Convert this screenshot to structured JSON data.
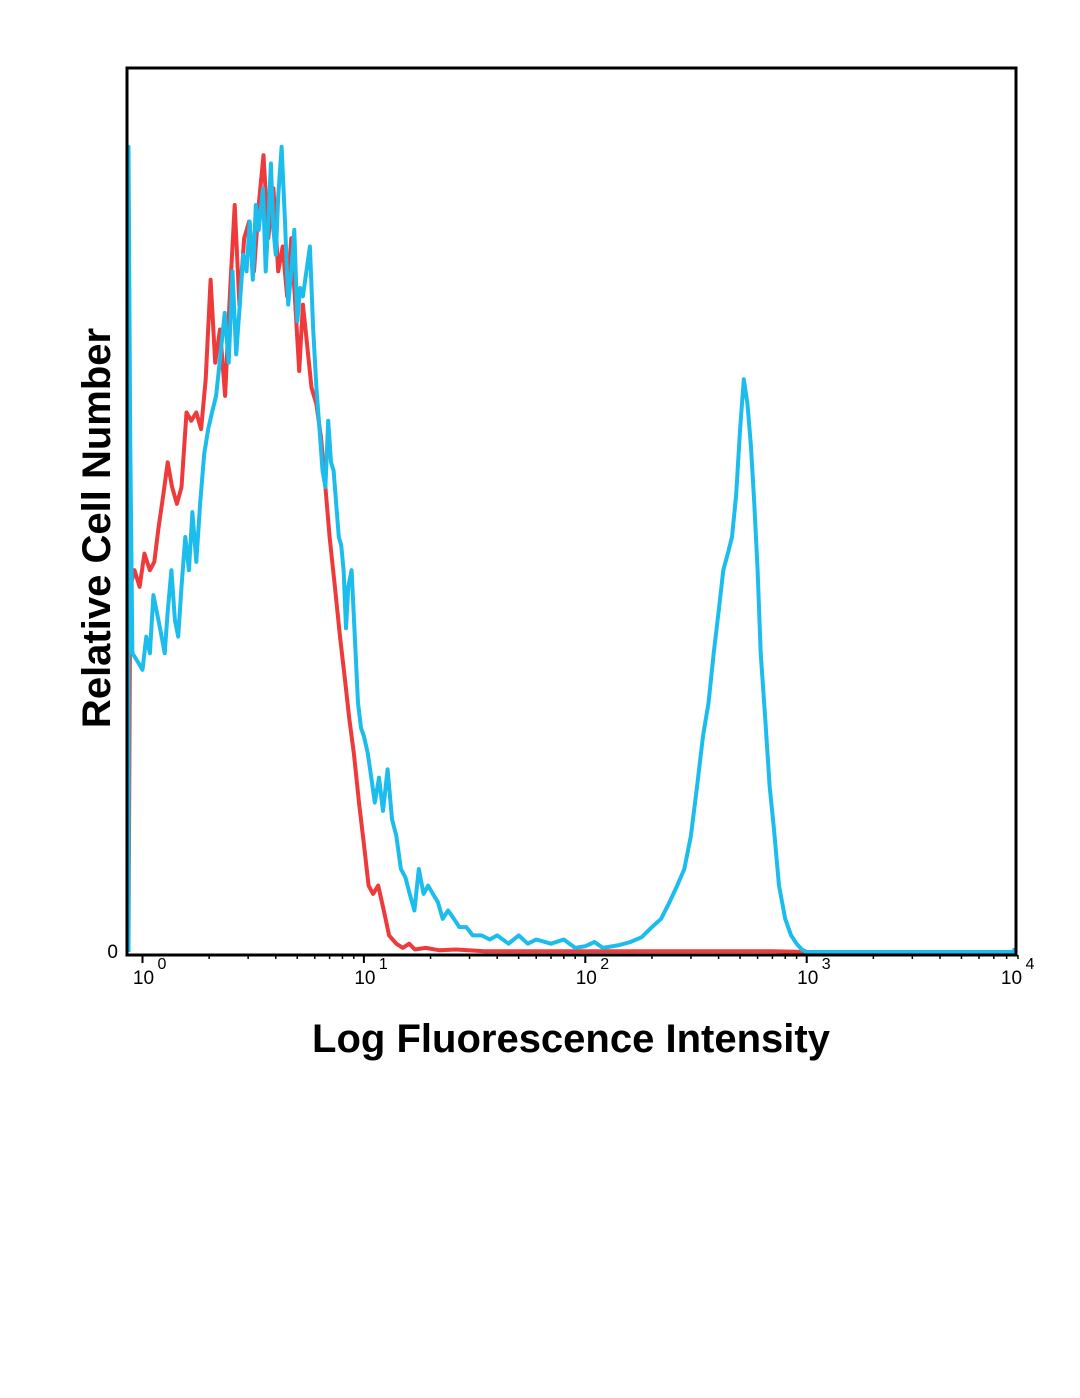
{
  "chart_data": {
    "type": "line",
    "title": "",
    "xlabel": "Log Fluorescence Intensity",
    "ylabel": "Relative Cell Number",
    "x_scale": "log",
    "xlim": [
      0.84,
      10000
    ],
    "ylim": [
      0,
      100
    ],
    "x_ticks": [
      {
        "base": "10",
        "exp": "0"
      },
      {
        "base": "10",
        "exp": "1"
      },
      {
        "base": "10",
        "exp": "2"
      },
      {
        "base": "10",
        "exp": "3"
      },
      {
        "base": "10",
        "exp": "4"
      }
    ],
    "y_zero_label": "0",
    "grid": false,
    "legend": "none",
    "series": [
      {
        "color": "#ee3a3a",
        "points": [
          [
            0.85,
            0
          ],
          [
            0.88,
            44
          ],
          [
            0.92,
            46
          ],
          [
            0.97,
            44
          ],
          [
            1.02,
            48
          ],
          [
            1.08,
            46
          ],
          [
            1.13,
            47
          ],
          [
            1.18,
            51
          ],
          [
            1.24,
            55
          ],
          [
            1.3,
            59
          ],
          [
            1.36,
            56
          ],
          [
            1.43,
            54
          ],
          [
            1.5,
            56
          ],
          [
            1.58,
            65
          ],
          [
            1.66,
            64
          ],
          [
            1.75,
            65
          ],
          [
            1.84,
            63
          ],
          [
            1.93,
            69
          ],
          [
            2.03,
            81
          ],
          [
            2.13,
            71
          ],
          [
            2.24,
            75
          ],
          [
            2.36,
            67
          ],
          [
            2.48,
            79
          ],
          [
            2.61,
            90
          ],
          [
            2.74,
            78
          ],
          [
            2.88,
            86
          ],
          [
            3.03,
            88
          ],
          [
            3.19,
            82
          ],
          [
            3.35,
            90
          ],
          [
            3.52,
            96
          ],
          [
            3.7,
            86
          ],
          [
            3.9,
            92
          ],
          [
            4.1,
            82
          ],
          [
            4.3,
            85
          ],
          [
            4.5,
            79
          ],
          [
            4.7,
            86
          ],
          [
            4.9,
            78
          ],
          [
            5.1,
            70
          ],
          [
            5.3,
            78
          ],
          [
            5.5,
            74
          ],
          [
            5.8,
            68
          ],
          [
            6.1,
            66
          ],
          [
            6.4,
            62
          ],
          [
            6.7,
            56
          ],
          [
            7.0,
            50
          ],
          [
            7.4,
            44
          ],
          [
            7.8,
            38
          ],
          [
            8.2,
            33
          ],
          [
            8.6,
            28
          ],
          [
            9.0,
            24
          ],
          [
            9.5,
            18
          ],
          [
            10.0,
            13
          ],
          [
            10.5,
            8
          ],
          [
            11.0,
            7
          ],
          [
            11.6,
            8
          ],
          [
            12.3,
            5
          ],
          [
            13.0,
            2
          ],
          [
            14.0,
            1
          ],
          [
            15.0,
            0.5
          ],
          [
            16.0,
            1
          ],
          [
            17.0,
            0.3
          ],
          [
            19.0,
            0.5
          ],
          [
            22.0,
            0.2
          ],
          [
            26.0,
            0.3
          ],
          [
            35.0,
            0.1
          ],
          [
            50.0,
            0.1
          ],
          [
            100.0,
            0.1
          ],
          [
            300.0,
            0.1
          ],
          [
            700.0,
            0.1
          ],
          [
            1000.0,
            0
          ],
          [
            10000.0,
            0
          ]
        ]
      },
      {
        "color": "#1cbdec",
        "points": [
          [
            0.85,
            0
          ],
          [
            0.86,
            97
          ],
          [
            0.88,
            62
          ],
          [
            0.9,
            36
          ],
          [
            0.95,
            35
          ],
          [
            1.0,
            34
          ],
          [
            1.04,
            38
          ],
          [
            1.08,
            36
          ],
          [
            1.12,
            43
          ],
          [
            1.18,
            40
          ],
          [
            1.22,
            38
          ],
          [
            1.26,
            36
          ],
          [
            1.3,
            41
          ],
          [
            1.35,
            46
          ],
          [
            1.4,
            40
          ],
          [
            1.45,
            38
          ],
          [
            1.5,
            44
          ],
          [
            1.56,
            50
          ],
          [
            1.62,
            46
          ],
          [
            1.68,
            53
          ],
          [
            1.75,
            47
          ],
          [
            1.82,
            54
          ],
          [
            1.9,
            60
          ],
          [
            1.98,
            63
          ],
          [
            2.06,
            65
          ],
          [
            2.15,
            67
          ],
          [
            2.25,
            72
          ],
          [
            2.35,
            77
          ],
          [
            2.45,
            71
          ],
          [
            2.55,
            82
          ],
          [
            2.65,
            72
          ],
          [
            2.75,
            78
          ],
          [
            2.85,
            84
          ],
          [
            2.95,
            82
          ],
          [
            3.05,
            88
          ],
          [
            3.15,
            81
          ],
          [
            3.25,
            90
          ],
          [
            3.35,
            87
          ],
          [
            3.5,
            92
          ],
          [
            3.6,
            82
          ],
          [
            3.7,
            88
          ],
          [
            3.8,
            95
          ],
          [
            3.9,
            87
          ],
          [
            4.0,
            84
          ],
          [
            4.1,
            91
          ],
          [
            4.25,
            97
          ],
          [
            4.4,
            88
          ],
          [
            4.55,
            78
          ],
          [
            4.7,
            82
          ],
          [
            4.85,
            87
          ],
          [
            5.0,
            76
          ],
          [
            5.15,
            80
          ],
          [
            5.3,
            79
          ],
          [
            5.5,
            82
          ],
          [
            5.7,
            85
          ],
          [
            5.9,
            75
          ],
          [
            6.1,
            68
          ],
          [
            6.3,
            63
          ],
          [
            6.5,
            58
          ],
          [
            6.7,
            56
          ],
          [
            6.9,
            64
          ],
          [
            7.1,
            59
          ],
          [
            7.3,
            58
          ],
          [
            7.5,
            54
          ],
          [
            7.7,
            50
          ],
          [
            7.9,
            49
          ],
          [
            8.1,
            46
          ],
          [
            8.3,
            39
          ],
          [
            8.5,
            44
          ],
          [
            8.8,
            46
          ],
          [
            9.1,
            38
          ],
          [
            9.4,
            30
          ],
          [
            9.7,
            27
          ],
          [
            10.0,
            26
          ],
          [
            10.4,
            24
          ],
          [
            10.8,
            21
          ],
          [
            11.2,
            18
          ],
          [
            11.7,
            21
          ],
          [
            12.2,
            17
          ],
          [
            12.8,
            22
          ],
          [
            13.4,
            16
          ],
          [
            14.0,
            14
          ],
          [
            14.7,
            10
          ],
          [
            15.4,
            9
          ],
          [
            16.1,
            7
          ],
          [
            16.9,
            5
          ],
          [
            17.7,
            10
          ],
          [
            18.6,
            7
          ],
          [
            19.5,
            8
          ],
          [
            20.5,
            7
          ],
          [
            21.6,
            6
          ],
          [
            22.7,
            4
          ],
          [
            24.0,
            5
          ],
          [
            25.5,
            4
          ],
          [
            27.0,
            3
          ],
          [
            29.0,
            3
          ],
          [
            31.0,
            2
          ],
          [
            34.0,
            2
          ],
          [
            37.0,
            1.5
          ],
          [
            40.0,
            2
          ],
          [
            45.0,
            1
          ],
          [
            50.0,
            2
          ],
          [
            55.0,
            1
          ],
          [
            60.0,
            1.5
          ],
          [
            70.0,
            1
          ],
          [
            80.0,
            1.5
          ],
          [
            90.0,
            0.5
          ],
          [
            100.0,
            0.7
          ],
          [
            110.0,
            1.2
          ],
          [
            120.0,
            0.5
          ],
          [
            140.0,
            0.8
          ],
          [
            160.0,
            1.2
          ],
          [
            180.0,
            1.8
          ],
          [
            200.0,
            3
          ],
          [
            220.0,
            4
          ],
          [
            240.0,
            6
          ],
          [
            260.0,
            8
          ],
          [
            280.0,
            10
          ],
          [
            300.0,
            14
          ],
          [
            320.0,
            20
          ],
          [
            340.0,
            26
          ],
          [
            360.0,
            30
          ],
          [
            380.0,
            36
          ],
          [
            400.0,
            41
          ],
          [
            420.0,
            46
          ],
          [
            440.0,
            48
          ],
          [
            460.0,
            50
          ],
          [
            480.0,
            55
          ],
          [
            500.0,
            63
          ],
          [
            520.0,
            69
          ],
          [
            540.0,
            66
          ],
          [
            560.0,
            61
          ],
          [
            580.0,
            54
          ],
          [
            600.0,
            46
          ],
          [
            620.0,
            36
          ],
          [
            650.0,
            28
          ],
          [
            680.0,
            20
          ],
          [
            710.0,
            15
          ],
          [
            750.0,
            8
          ],
          [
            800.0,
            4
          ],
          [
            850.0,
            2
          ],
          [
            900.0,
            1
          ],
          [
            950.0,
            0.3
          ],
          [
            1000.0,
            0
          ],
          [
            3000.0,
            0
          ],
          [
            9800.0,
            0
          ],
          [
            10000.0,
            0.5
          ]
        ]
      }
    ]
  }
}
